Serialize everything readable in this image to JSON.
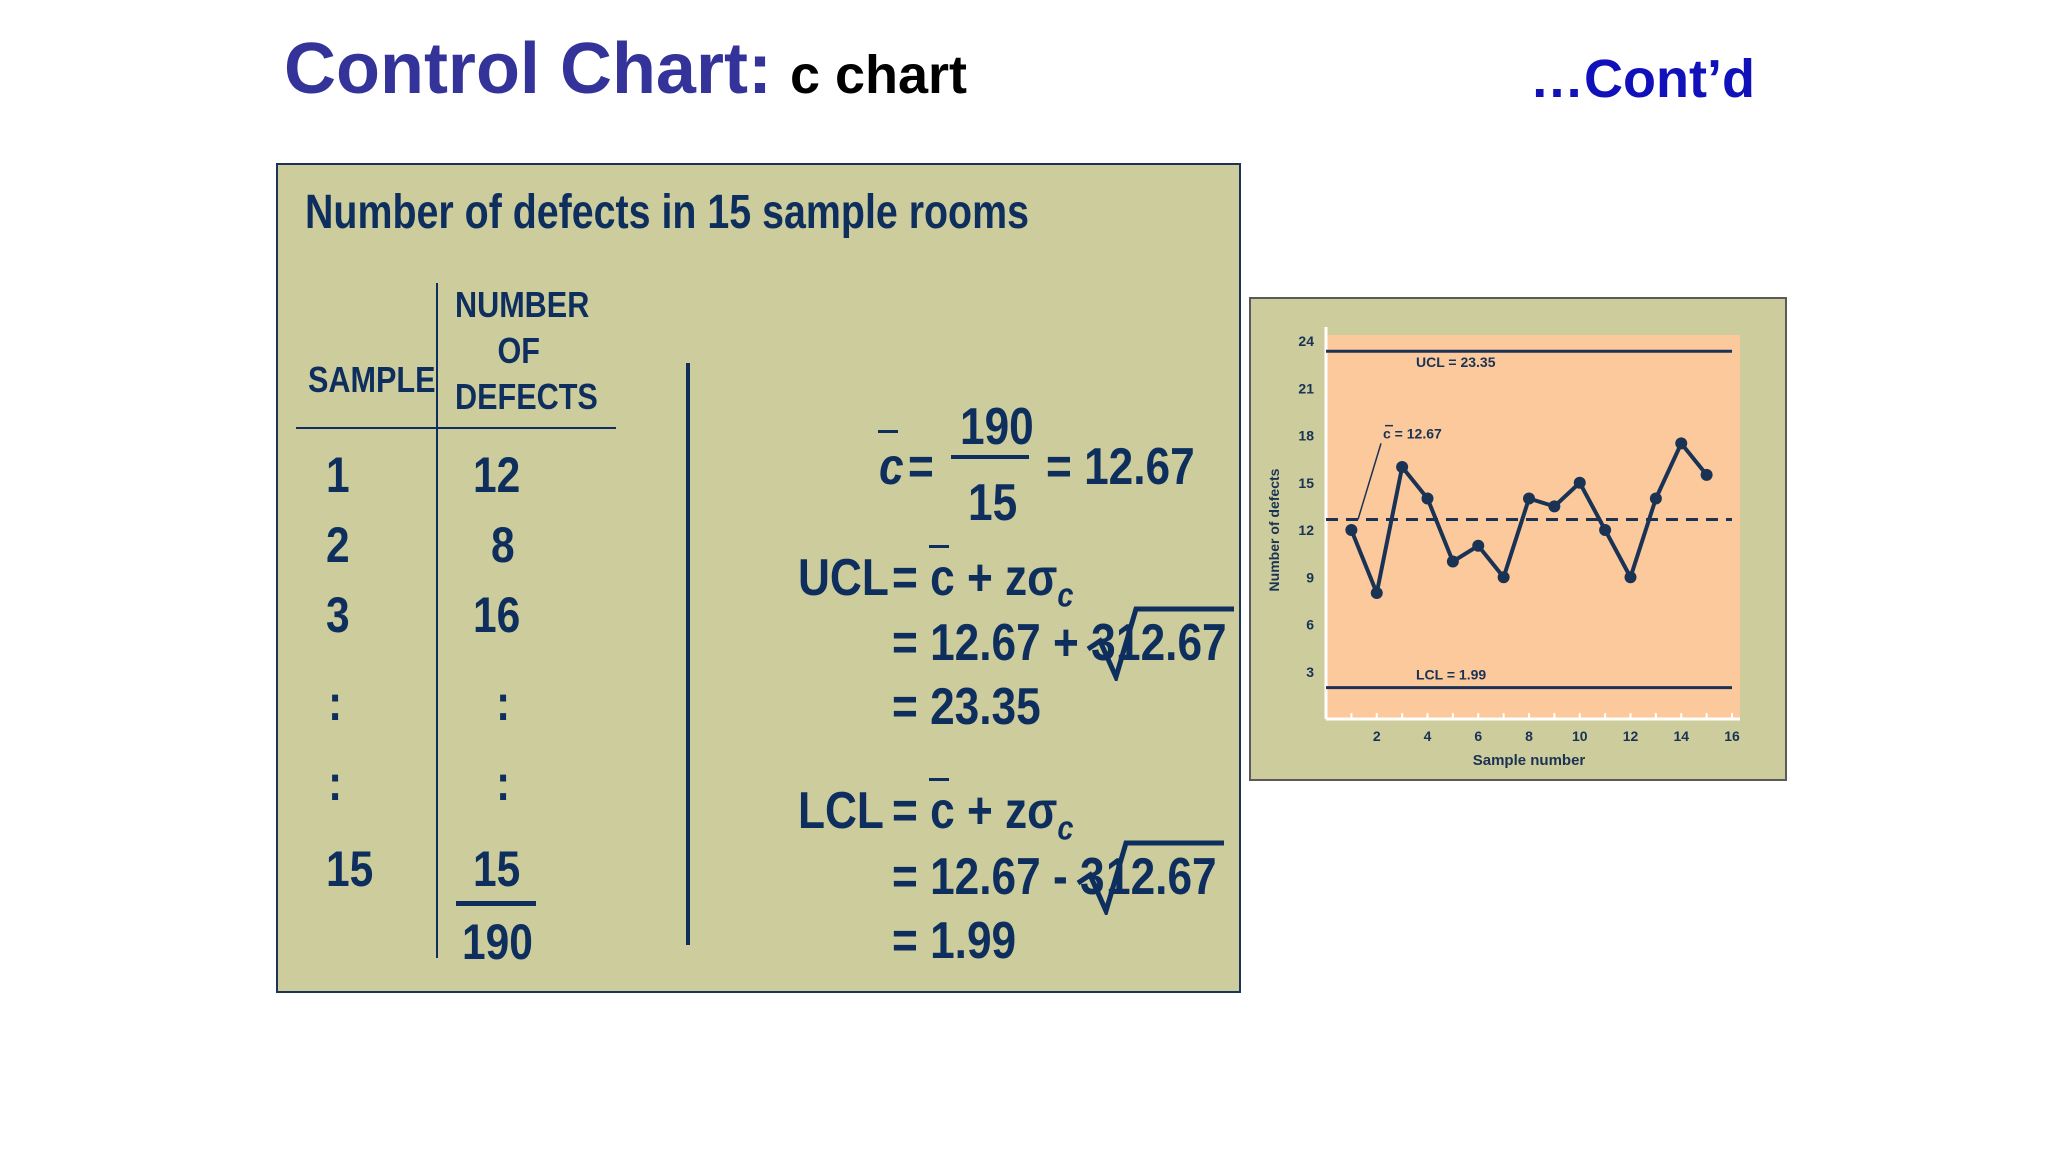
{
  "title": {
    "main": "Control Chart:",
    "sub": "c chart",
    "contd": "…Cont’d"
  },
  "table": {
    "caption": "Number of defects in 15 sample rooms",
    "col1_header": "SAMPLE",
    "col2_header_lines": [
      "NUMBER",
      "OF",
      "DEFECTS"
    ],
    "rows": [
      {
        "sample": "1",
        "defects": "12"
      },
      {
        "sample": "2",
        "defects": "8"
      },
      {
        "sample": "3",
        "defects": "16"
      },
      {
        "sample": ":",
        "defects": ":"
      },
      {
        "sample": ":",
        "defects": ":"
      },
      {
        "sample": "15",
        "defects": "15"
      }
    ],
    "total": "190"
  },
  "formulas": {
    "cbar": {
      "symbol": "c",
      "eq": "=",
      "numerator": "190",
      "denominator": "15",
      "result": "= 12.67"
    },
    "ucl": {
      "label": "UCL",
      "line1": "= c + zσ",
      "sub": "c",
      "line2a": "= 12.67 + 3",
      "line2b": "12.67",
      "line3": "= 23.35"
    },
    "lcl": {
      "label": "LCL",
      "line1": "= c + zσ",
      "sub": "c",
      "line2a": "= 12.67 - 3",
      "line2b": "12.67",
      "line3": "= 1.99"
    }
  },
  "chart_data": {
    "type": "line",
    "xlabel": "Sample number",
    "ylabel": "Number of defects",
    "x": [
      1,
      2,
      3,
      4,
      5,
      6,
      7,
      8,
      9,
      10,
      11,
      12,
      13,
      14,
      15
    ],
    "series": [
      {
        "values": [
          12,
          8,
          16,
          14,
          10,
          11,
          9,
          14,
          13.5,
          15,
          12,
          9,
          14,
          17.5,
          15.5
        ]
      }
    ],
    "xlim": [
      0,
      16
    ],
    "ylim": [
      0,
      24
    ],
    "xticks": [
      2,
      4,
      6,
      8,
      10,
      12,
      14,
      16
    ],
    "yticks": [
      3,
      6,
      9,
      12,
      15,
      18,
      21,
      24
    ],
    "ucl": {
      "value": 23.35,
      "label": "UCL = 23.35"
    },
    "lcl": {
      "value": 1.99,
      "label": "LCL = 1.99"
    },
    "center": {
      "value": 12.67,
      "label": "c = 12.67"
    },
    "colors": {
      "plot_bg": "#fcc99c",
      "line": "#1a3355"
    }
  }
}
